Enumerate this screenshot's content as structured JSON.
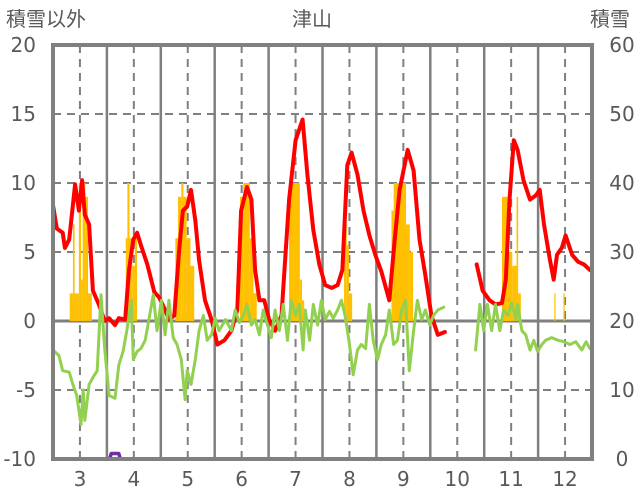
{
  "chart_data": {
    "type": "line",
    "title": "津山",
    "left_axis_label": "積雪以外",
    "right_axis_label": "積雪",
    "ylim_left": [
      -10,
      20
    ],
    "ylim_right": [
      0,
      60
    ],
    "yticks_left": [
      "20",
      "15",
      "10",
      "5",
      "0",
      "-5",
      "-10"
    ],
    "yticks_left_values": [
      20,
      15,
      10,
      5,
      0,
      -5,
      -10
    ],
    "yticks_right": [
      "60",
      "50",
      "40",
      "30",
      "20",
      "10",
      "0"
    ],
    "yticks_right_values": [
      60,
      50,
      40,
      30,
      20,
      10,
      0
    ],
    "xlim": [
      2.5,
      12.5
    ],
    "categories": [
      "3",
      "4",
      "5",
      "6",
      "7",
      "8",
      "9",
      "10",
      "11",
      "12"
    ],
    "colors": {
      "red": "#FF0000",
      "green": "#92D050",
      "bars": "#FFC000",
      "purple": "#7030A0",
      "frame": "#808080"
    },
    "series": [
      {
        "name": "red",
        "axis": "left",
        "segments": [
          [
            [
              2.5,
              8.4
            ],
            [
              2.57,
              6.7
            ],
            [
              2.68,
              6.4
            ],
            [
              2.72,
              5.3
            ],
            [
              2.8,
              5.9
            ],
            [
              2.91,
              9.9
            ],
            [
              2.98,
              8.0
            ],
            [
              3.04,
              10.2
            ],
            [
              3.09,
              7.7
            ],
            [
              3.17,
              7.0
            ],
            [
              3.24,
              2.2
            ],
            [
              3.35,
              1.2
            ],
            [
              3.46,
              0
            ],
            [
              3.54,
              0.2
            ],
            [
              3.65,
              -0.3
            ],
            [
              3.72,
              0.2
            ],
            [
              3.84,
              0.1
            ],
            [
              3.91,
              3.7
            ],
            [
              3.99,
              5.9
            ],
            [
              4.06,
              6.4
            ],
            [
              4.13,
              5.5
            ],
            [
              4.25,
              4.1
            ],
            [
              4.38,
              2.1
            ],
            [
              4.47,
              1.7
            ],
            [
              4.58,
              0.8
            ],
            [
              4.65,
              0.1
            ],
            [
              4.75,
              0.4
            ],
            [
              4.84,
              5.1
            ],
            [
              4.91,
              8.0
            ],
            [
              4.99,
              8.3
            ],
            [
              5.06,
              9.5
            ],
            [
              5.14,
              7.3
            ],
            [
              5.21,
              4.4
            ],
            [
              5.32,
              1.5
            ],
            [
              5.44,
              0.1
            ],
            [
              5.55,
              -1.7
            ],
            [
              5.68,
              -1.4
            ],
            [
              5.81,
              -0.7
            ],
            [
              5.92,
              0.8
            ],
            [
              5.99,
              8.0
            ],
            [
              6.1,
              9.7
            ],
            [
              6.18,
              8.8
            ],
            [
              6.25,
              3.7
            ],
            [
              6.33,
              1.5
            ],
            [
              6.42,
              1.5
            ],
            [
              6.51,
              0.1
            ],
            [
              6.62,
              -0.7
            ],
            [
              6.74,
              0.4
            ],
            [
              6.88,
              8.8
            ],
            [
              7.0,
              13.1
            ],
            [
              7.13,
              14.6
            ],
            [
              7.22,
              10.6
            ],
            [
              7.33,
              6.6
            ],
            [
              7.44,
              4.1
            ],
            [
              7.55,
              2.6
            ],
            [
              7.67,
              2.4
            ],
            [
              7.78,
              2.6
            ],
            [
              7.87,
              3.7
            ],
            [
              7.96,
              11.3
            ],
            [
              8.04,
              12.2
            ],
            [
              8.15,
              10.6
            ],
            [
              8.26,
              8.0
            ],
            [
              8.37,
              6.2
            ],
            [
              8.48,
              4.8
            ],
            [
              8.59,
              3.6
            ],
            [
              8.74,
              1.5
            ],
            [
              8.84,
              5.9
            ],
            [
              8.93,
              9.5
            ],
            [
              9.08,
              12.4
            ],
            [
              9.19,
              10.9
            ],
            [
              9.3,
              5.9
            ],
            [
              9.41,
              3.3
            ],
            [
              9.52,
              0.4
            ],
            [
              9.64,
              -1.0
            ],
            [
              9.77,
              -0.8
            ]
          ],
          [
            [
              10.36,
              4.1
            ],
            [
              10.47,
              2.2
            ],
            [
              10.6,
              1.5
            ],
            [
              10.71,
              1.2
            ],
            [
              10.83,
              1.3
            ],
            [
              10.9,
              3.0
            ],
            [
              10.97,
              8.8
            ],
            [
              11.05,
              13.1
            ],
            [
              11.12,
              12.4
            ],
            [
              11.23,
              10.2
            ],
            [
              11.35,
              8.8
            ],
            [
              11.46,
              9.1
            ],
            [
              11.53,
              9.5
            ],
            [
              11.61,
              7.0
            ],
            [
              11.72,
              4.4
            ],
            [
              11.79,
              3.0
            ],
            [
              11.85,
              4.8
            ],
            [
              11.94,
              5.3
            ],
            [
              12.01,
              6.2
            ],
            [
              12.13,
              4.8
            ],
            [
              12.24,
              4.3
            ],
            [
              12.35,
              4.1
            ],
            [
              12.46,
              3.7
            ]
          ]
        ]
      },
      {
        "name": "green",
        "axis": "left",
        "segments": [
          [
            [
              2.5,
              -2.1
            ],
            [
              2.61,
              -2.5
            ],
            [
              2.68,
              -3.6
            ],
            [
              2.8,
              -3.7
            ],
            [
              2.87,
              -4.6
            ],
            [
              2.94,
              -5.4
            ],
            [
              3.02,
              -7.5
            ],
            [
              3.06,
              -5.0
            ],
            [
              3.09,
              -7.2
            ],
            [
              3.17,
              -4.6
            ],
            [
              3.24,
              -4.1
            ],
            [
              3.32,
              -3.6
            ],
            [
              3.39,
              1.9
            ],
            [
              3.46,
              -2.0
            ],
            [
              3.54,
              -5.4
            ],
            [
              3.65,
              -5.6
            ],
            [
              3.72,
              -3.2
            ],
            [
              3.8,
              -2.2
            ],
            [
              3.87,
              -0.7
            ],
            [
              3.95,
              1.5
            ],
            [
              3.99,
              -2.8
            ],
            [
              4.06,
              -2.2
            ],
            [
              4.13,
              -2.0
            ],
            [
              4.21,
              -1.4
            ],
            [
              4.28,
              0.1
            ],
            [
              4.36,
              1.9
            ],
            [
              4.43,
              -0.7
            ],
            [
              4.51,
              1.5
            ],
            [
              4.58,
              -1.0
            ],
            [
              4.65,
              1.5
            ],
            [
              4.73,
              -1.2
            ],
            [
              4.8,
              -1.7
            ],
            [
              4.88,
              -2.8
            ],
            [
              4.95,
              -5.7
            ],
            [
              4.99,
              -3.6
            ],
            [
              5.06,
              -4.6
            ],
            [
              5.14,
              -2.8
            ],
            [
              5.21,
              -0.7
            ],
            [
              5.29,
              0.4
            ],
            [
              5.36,
              -1.4
            ],
            [
              5.44,
              -1.0
            ],
            [
              5.51,
              0.2
            ],
            [
              5.58,
              -0.7
            ],
            [
              5.7,
              0.1
            ],
            [
              5.81,
              -0.7
            ],
            [
              5.88,
              0.8
            ],
            [
              5.96,
              -0.1
            ],
            [
              6.03,
              0.4
            ],
            [
              6.1,
              1.2
            ],
            [
              6.18,
              -0.3
            ],
            [
              6.25,
              0.1
            ],
            [
              6.33,
              -1.0
            ],
            [
              6.4,
              0.8
            ],
            [
              6.48,
              -0.3
            ],
            [
              6.55,
              -1.2
            ],
            [
              6.62,
              0.8
            ],
            [
              6.7,
              -0.7
            ],
            [
              6.77,
              1.2
            ],
            [
              6.85,
              -1.4
            ],
            [
              6.92,
              1.5
            ],
            [
              7.0,
              0.4
            ],
            [
              7.07,
              1.2
            ],
            [
              7.14,
              -2.1
            ],
            [
              7.18,
              0.8
            ],
            [
              7.26,
              -1.4
            ],
            [
              7.33,
              1.2
            ],
            [
              7.41,
              -0.3
            ],
            [
              7.48,
              1.5
            ],
            [
              7.55,
              0.1
            ],
            [
              7.63,
              0.7
            ],
            [
              7.7,
              0.2
            ],
            [
              7.78,
              0.8
            ],
            [
              7.85,
              1.5
            ],
            [
              7.92,
              0.4
            ],
            [
              8.0,
              -1.7
            ],
            [
              8.07,
              -3.9
            ],
            [
              8.15,
              -2.1
            ],
            [
              8.22,
              -1.7
            ],
            [
              8.3,
              -2.0
            ],
            [
              8.37,
              1.2
            ],
            [
              8.44,
              -1.4
            ],
            [
              8.52,
              -2.8
            ],
            [
              8.59,
              -1.7
            ],
            [
              8.67,
              -1.0
            ],
            [
              8.74,
              0.8
            ],
            [
              8.82,
              -1.7
            ],
            [
              8.89,
              -1.4
            ],
            [
              8.97,
              0.8
            ],
            [
              9.04,
              1.5
            ],
            [
              9.11,
              -3.6
            ],
            [
              9.19,
              -0.7
            ],
            [
              9.26,
              1.5
            ],
            [
              9.34,
              0.1
            ],
            [
              9.41,
              0.8
            ],
            [
              9.49,
              -0.3
            ],
            [
              9.56,
              0.4
            ],
            [
              9.64,
              0.8
            ],
            [
              9.75,
              1.0
            ]
          ],
          [
            [
              10.34,
              -2.1
            ],
            [
              10.42,
              1.2
            ],
            [
              10.49,
              -0.7
            ],
            [
              10.56,
              1.2
            ],
            [
              10.64,
              -0.7
            ],
            [
              10.71,
              1.2
            ],
            [
              10.79,
              -0.7
            ],
            [
              10.86,
              0.8
            ],
            [
              10.94,
              0.4
            ],
            [
              11.01,
              1.3
            ],
            [
              11.09,
              0.1
            ],
            [
              11.12,
              1.2
            ],
            [
              11.2,
              -0.7
            ],
            [
              11.27,
              -1.0
            ],
            [
              11.35,
              -2.1
            ],
            [
              11.42,
              -1.4
            ],
            [
              11.49,
              -2.2
            ],
            [
              11.57,
              -1.7
            ],
            [
              11.64,
              -1.4
            ],
            [
              11.75,
              -1.2
            ],
            [
              11.87,
              -1.4
            ],
            [
              11.98,
              -1.5
            ],
            [
              12.09,
              -1.7
            ],
            [
              12.2,
              -1.5
            ],
            [
              12.31,
              -2.1
            ],
            [
              12.39,
              -1.5
            ],
            [
              12.46,
              -2.0
            ]
          ]
        ]
      },
      {
        "name": "purple",
        "axis": "right",
        "segments": [
          [
            [
              2.5,
              0
            ],
            [
              3.55,
              0
            ],
            [
              3.58,
              0.8
            ],
            [
              3.72,
              0.8
            ],
            [
              3.75,
              0
            ],
            [
              9.8,
              0
            ]
          ],
          [
            [
              10.35,
              0
            ],
            [
              12.5,
              0
            ]
          ]
        ]
      }
    ],
    "bars": {
      "name": "bars",
      "axis": "left",
      "ranges": [
        [
          2.81,
          2.87,
          2
        ],
        [
          2.87,
          2.9,
          7
        ],
        [
          2.9,
          2.98,
          2
        ],
        [
          2.98,
          3.02,
          10
        ],
        [
          3.02,
          3.05,
          3
        ],
        [
          3.05,
          3.1,
          10
        ],
        [
          3.1,
          3.15,
          9
        ],
        [
          3.15,
          3.22,
          2
        ],
        [
          3.85,
          3.88,
          6
        ],
        [
          3.88,
          3.92,
          10
        ],
        [
          3.92,
          3.97,
          6
        ],
        [
          3.97,
          4.02,
          4
        ],
        [
          4.02,
          4.06,
          6
        ],
        [
          4.77,
          4.82,
          6
        ],
        [
          4.82,
          4.88,
          9
        ],
        [
          4.88,
          4.92,
          10
        ],
        [
          4.92,
          4.98,
          9
        ],
        [
          4.98,
          5.05,
          6
        ],
        [
          5.05,
          5.12,
          4
        ],
        [
          5.97,
          6.03,
          9
        ],
        [
          6.03,
          6.15,
          10
        ],
        [
          6.15,
          6.22,
          6
        ],
        [
          6.22,
          6.28,
          2
        ],
        [
          6.88,
          7.08,
          10
        ],
        [
          7.08,
          7.12,
          3
        ],
        [
          7.12,
          7.16,
          1.5
        ],
        [
          7.9,
          7.95,
          7
        ],
        [
          7.95,
          7.99,
          5.5
        ],
        [
          7.99,
          8.05,
          2
        ],
        [
          8.78,
          8.82,
          8
        ],
        [
          8.82,
          9.05,
          10
        ],
        [
          9.05,
          9.12,
          7
        ],
        [
          9.12,
          9.18,
          5
        ],
        [
          10.83,
          10.93,
          9
        ],
        [
          10.93,
          11.02,
          5
        ],
        [
          11.02,
          11.1,
          4
        ],
        [
          11.1,
          11.13,
          9
        ],
        [
          11.13,
          11.18,
          2
        ],
        [
          11.8,
          11.82,
          2
        ],
        [
          11.97,
          11.99,
          2
        ]
      ]
    }
  }
}
